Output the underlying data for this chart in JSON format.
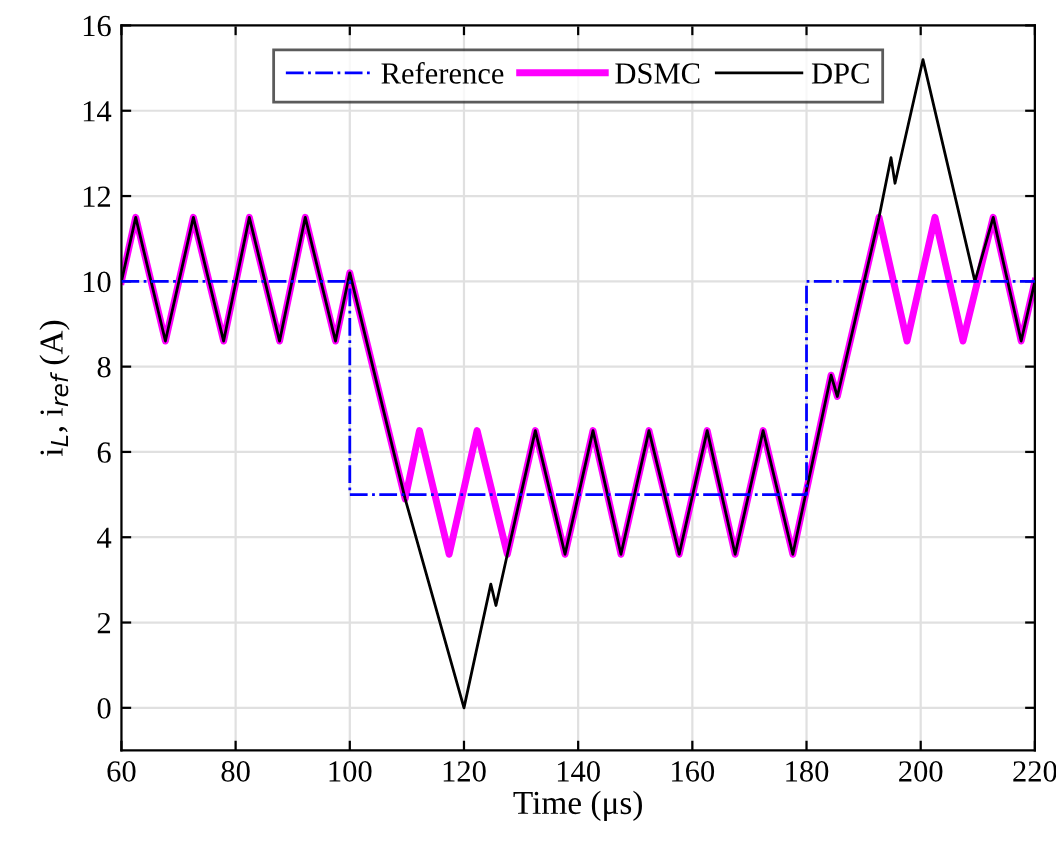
{
  "chart_data": {
    "type": "line",
    "xlabel": "Time (μs)",
    "ylabel": "i$_{L}$, i$_{ref}$ (A)",
    "xlim": [
      60,
      220
    ],
    "xticks": [
      60,
      80,
      100,
      120,
      140,
      160,
      180,
      200,
      220
    ],
    "ylim": [
      -1,
      16
    ],
    "yticks": [
      0,
      2,
      4,
      6,
      8,
      10,
      12,
      14,
      16
    ],
    "grid": true,
    "legend": "top",
    "series": [
      {
        "name": "Reference",
        "color": "#0000ff",
        "line_style": "dashdot",
        "x": [
          60,
          100,
          100,
          180,
          180,
          220
        ],
        "values": [
          10,
          10,
          5,
          5,
          10,
          10
        ]
      },
      {
        "name": "DSMC",
        "color": "#ff00ff",
        "line_style": "solid",
        "x": [
          60,
          62.5,
          67.7,
          72.6,
          77.9,
          82.4,
          87.7,
          92.2,
          97.5,
          100,
          109.7,
          112.2,
          117.4,
          122.3,
          127.6,
          132.5,
          137.7,
          142.6,
          147.5,
          152.4,
          157.7,
          162.6,
          167.5,
          172.4,
          177.6,
          184.3,
          185.4,
          192.7,
          197.6,
          202.5,
          207.4,
          212.7,
          217.6,
          220
        ],
        "values": [
          10,
          11.5,
          8.6,
          11.5,
          8.6,
          11.5,
          8.6,
          11.5,
          8.6,
          10.2,
          4.9,
          6.5,
          3.6,
          6.5,
          3.6,
          6.5,
          3.6,
          6.5,
          3.6,
          6.5,
          3.6,
          6.5,
          3.6,
          6.5,
          3.6,
          7.8,
          7.3,
          11.5,
          8.6,
          11.5,
          8.6,
          11.5,
          8.6,
          10
        ]
      },
      {
        "name": "DPC",
        "color": "#000000",
        "line_style": "solid",
        "x": [
          60,
          62.5,
          67.7,
          72.6,
          77.9,
          82.4,
          87.7,
          92.2,
          97.5,
          100,
          109.7,
          120,
          124.7,
          125.6,
          127.6,
          132.5,
          137.7,
          142.6,
          147.5,
          152.4,
          157.7,
          162.6,
          167.5,
          172.4,
          177.6,
          184.3,
          185.4,
          192.7,
          194.8,
          195.5,
          200.4,
          209.5,
          212.7,
          217.6,
          220
        ],
        "values": [
          10,
          11.5,
          8.6,
          11.5,
          8.6,
          11.5,
          8.6,
          11.5,
          8.6,
          10.2,
          4.9,
          0,
          2.9,
          2.4,
          3.6,
          6.5,
          3.6,
          6.5,
          3.6,
          6.5,
          3.6,
          6.5,
          3.6,
          6.5,
          3.6,
          7.8,
          7.3,
          11.5,
          12.9,
          12.3,
          15.2,
          10,
          11.5,
          8.6,
          10
        ]
      }
    ]
  }
}
